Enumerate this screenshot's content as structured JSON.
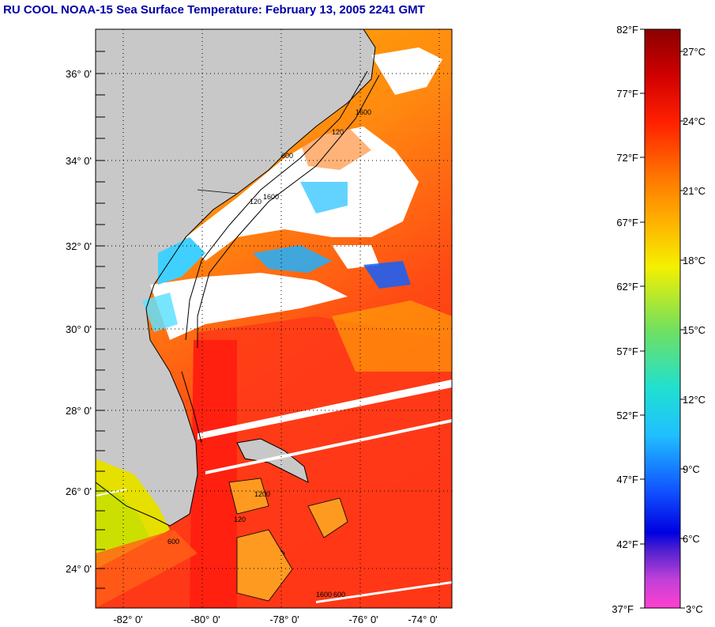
{
  "title": "RU COOL  NOAA-15  Sea Surface Temperature:  February 13, 2005 2241 GMT",
  "map": {
    "lat_labels": [
      "36° 0'",
      "34° 0'",
      "32° 0'",
      "30° 0'",
      "28° 0'",
      "26° 0'",
      "24° 0'"
    ],
    "lon_labels": [
      "-82° 0'",
      "-80° 0'",
      "-78° 0'",
      "-76° 0'",
      "-74° 0'"
    ],
    "contour_labels": [
      "120",
      "1600",
      "600",
      "120",
      "1600",
      "1200",
      "600",
      "120",
      "1600",
      "600"
    ],
    "colors": {
      "land": "#c8c8c8",
      "cloud": "#ffffff",
      "warm": "#ff2a1a",
      "orange": "#ff8c10",
      "yellow": "#f0e000",
      "cyan": "#40e0ff",
      "blue": "#1060ff"
    }
  },
  "colorbar": {
    "f_labels": [
      "82°F",
      "77°F",
      "72°F",
      "67°F",
      "62°F",
      "57°F",
      "52°F",
      "47°F",
      "42°F",
      "37°F"
    ],
    "c_labels": [
      "27°C",
      "24°C",
      "21°C",
      "18°C",
      "15°C",
      "12°C",
      "9°C",
      "6°C",
      "3°C"
    ]
  }
}
